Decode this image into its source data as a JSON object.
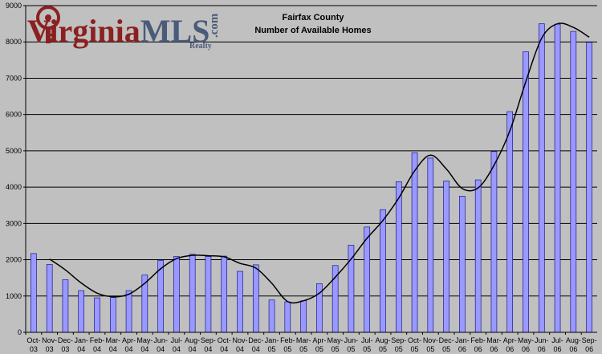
{
  "logo": {
    "part1": "Virginia",
    "part2": "MLS",
    "dotcom": ".com",
    "realty": "Realty"
  },
  "chart_data": {
    "type": "bar",
    "title": "Fairfax County",
    "subtitle": "Number of Available Homes",
    "xlabel": "",
    "ylabel": "",
    "ylim": [
      0,
      9000
    ],
    "yticks": [
      0,
      1000,
      2000,
      3000,
      4000,
      5000,
      6000,
      7000,
      8000,
      9000
    ],
    "grid": true,
    "legend": "none",
    "categories": [
      [
        "Oct-",
        "03"
      ],
      [
        "Nov-",
        "03"
      ],
      [
        "Dec-",
        "03"
      ],
      [
        "Jan-",
        "04"
      ],
      [
        "Feb-",
        "04"
      ],
      [
        "Mar-",
        "04"
      ],
      [
        "Apr-",
        "04"
      ],
      [
        "May-",
        "04"
      ],
      [
        "Jun-",
        "04"
      ],
      [
        "Jul-",
        "04"
      ],
      [
        "Aug-",
        "04"
      ],
      [
        "Sep-",
        "04"
      ],
      [
        "Oct-",
        "04"
      ],
      [
        "Nov-",
        "04"
      ],
      [
        "Dec-",
        "04"
      ],
      [
        "Jan-",
        "05"
      ],
      [
        "Feb-",
        "05"
      ],
      [
        "Mar-",
        "05"
      ],
      [
        "Apr-",
        "05"
      ],
      [
        "May-",
        "05"
      ],
      [
        "Jun-",
        "05"
      ],
      [
        "Jul-",
        "05"
      ],
      [
        "Aug-",
        "05"
      ],
      [
        "Sep-",
        "05"
      ],
      [
        "Oct-",
        "05"
      ],
      [
        "Nov-",
        "05"
      ],
      [
        "Dec-",
        "05"
      ],
      [
        "Jan-",
        "06"
      ],
      [
        "Feb-",
        "06"
      ],
      [
        "Mar-",
        "06"
      ],
      [
        "Apr-",
        "06"
      ],
      [
        "May-",
        "06"
      ],
      [
        "Jun-",
        "06"
      ],
      [
        "Jul-",
        "06"
      ],
      [
        "Aug-",
        "06"
      ],
      [
        "Sep-",
        "06"
      ]
    ],
    "values": [
      2170,
      1870,
      1450,
      1150,
      950,
      960,
      1150,
      1580,
      1980,
      2090,
      2150,
      2090,
      2100,
      1680,
      1860,
      890,
      840,
      870,
      1340,
      1840,
      2400,
      2900,
      3380,
      4150,
      4950,
      4800,
      4170,
      3750,
      4200,
      4980,
      6080,
      7730,
      8500,
      8490,
      8290,
      7990
    ],
    "trend": [
      null,
      2020,
      1720,
      1360,
      1080,
      980,
      1050,
      1350,
      1750,
      2030,
      2120,
      2110,
      2080,
      1900,
      1770,
      1350,
      850,
      870,
      1080,
      1520,
      2020,
      2590,
      3080,
      3700,
      4450,
      4880,
      4500,
      3960,
      3980,
      4600,
      5550,
      6900,
      8100,
      8500,
      8400,
      8130
    ],
    "colors": {
      "bar_fill": "#9999ff",
      "bar_stroke": "#000080",
      "plot_bg": "#c0c0c0",
      "grid": "#000000",
      "trend": "#000000",
      "logo_red": "#8b2020",
      "logo_blue": "#4a5b7a"
    }
  }
}
